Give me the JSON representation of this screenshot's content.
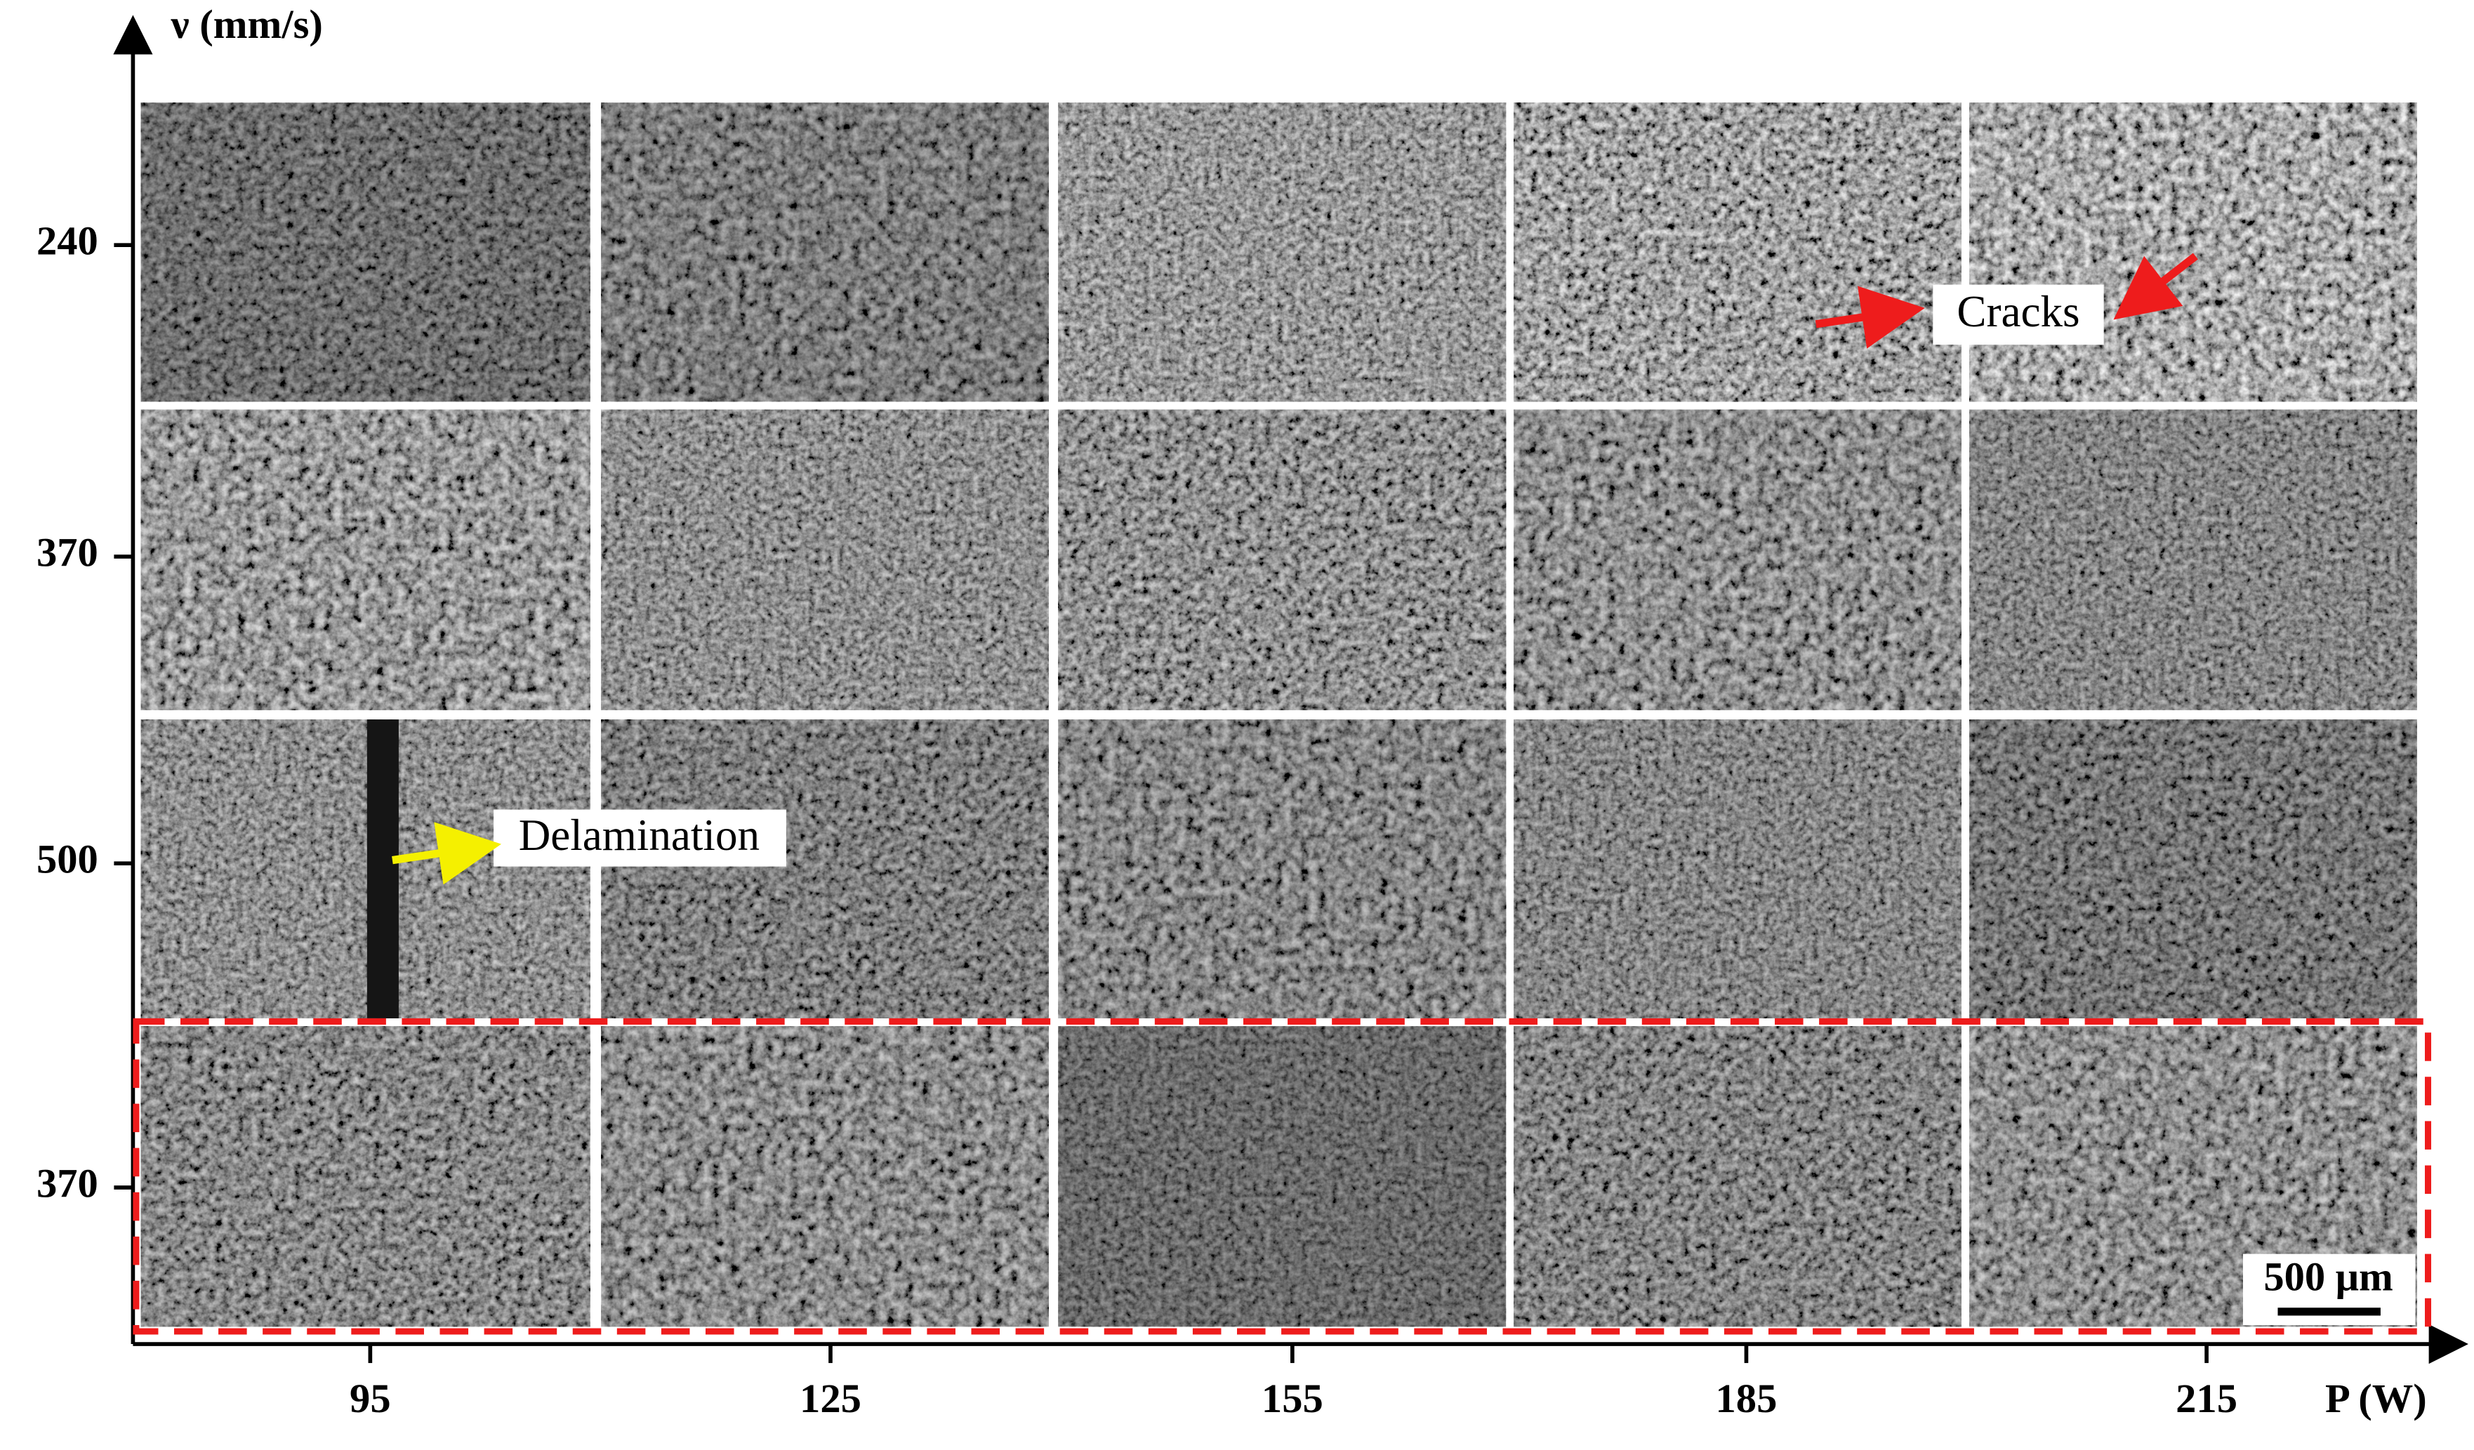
{
  "figure": {
    "y_axis_label": "ν (mm/s)",
    "x_axis_label": "P (W)",
    "y_labels": [
      240,
      370,
      500,
      370
    ],
    "x_labels": [
      95,
      125,
      155,
      185,
      215
    ],
    "annotations": {
      "cracks": "Cracks",
      "delamination": "Delamination"
    },
    "scale_bar": "500 μm"
  }
}
